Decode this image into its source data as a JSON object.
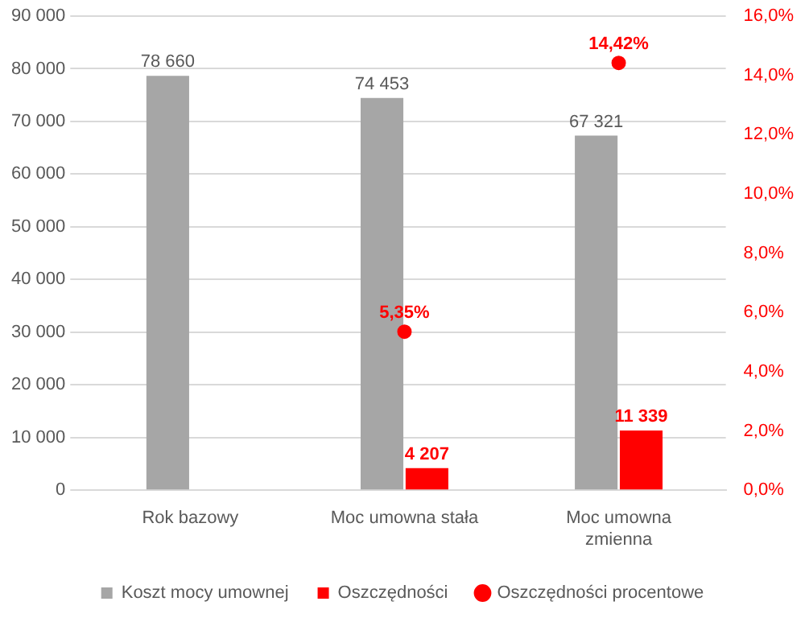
{
  "chart_data": {
    "type": "bar",
    "categories": [
      "Rok bazowy",
      "Moc umowna stała",
      "Moc umowna zmienna"
    ],
    "series": [
      {
        "name": "Koszt mocy umownej",
        "color": "#a6a6a6",
        "values": [
          78660,
          74453,
          67321
        ],
        "value_labels": [
          "78 660",
          "74 453",
          "67 321"
        ]
      },
      {
        "name": "Oszczędności",
        "color": "#ff0000",
        "values": [
          null,
          4207,
          11339
        ],
        "value_labels": [
          null,
          "4 207",
          "11 339"
        ]
      },
      {
        "name": "Oszczędności procentowe",
        "type": "scatter",
        "axis": "y2",
        "color": "#ff0000",
        "marker": "circle",
        "values": [
          null,
          5.35,
          14.42
        ],
        "value_labels": [
          null,
          "5,35%",
          "14,42%"
        ]
      }
    ],
    "ylim": [
      0,
      90000
    ],
    "yticks": [
      {
        "value": 0,
        "label": "0"
      },
      {
        "value": 10000,
        "label": "10 000"
      },
      {
        "value": 20000,
        "label": "20 000"
      },
      {
        "value": 30000,
        "label": "30 000"
      },
      {
        "value": 40000,
        "label": "40 000"
      },
      {
        "value": 50000,
        "label": "50 000"
      },
      {
        "value": 60000,
        "label": "60 000"
      },
      {
        "value": 70000,
        "label": "70 000"
      },
      {
        "value": 80000,
        "label": "80 000"
      },
      {
        "value": 90000,
        "label": "90 000"
      }
    ],
    "y2lim": [
      0,
      16
    ],
    "y2ticks": [
      {
        "value": 0,
        "label": "0,0%"
      },
      {
        "value": 2,
        "label": "2,0%"
      },
      {
        "value": 4,
        "label": "4,0%"
      },
      {
        "value": 6,
        "label": "6,0%"
      },
      {
        "value": 8,
        "label": "8,0%"
      },
      {
        "value": 10,
        "label": "10,0%"
      },
      {
        "value": 12,
        "label": "12,0%"
      },
      {
        "value": 14,
        "label": "14,0%"
      },
      {
        "value": 16,
        "label": "16,0%"
      }
    ],
    "grid": "y",
    "legend": "bottom"
  }
}
